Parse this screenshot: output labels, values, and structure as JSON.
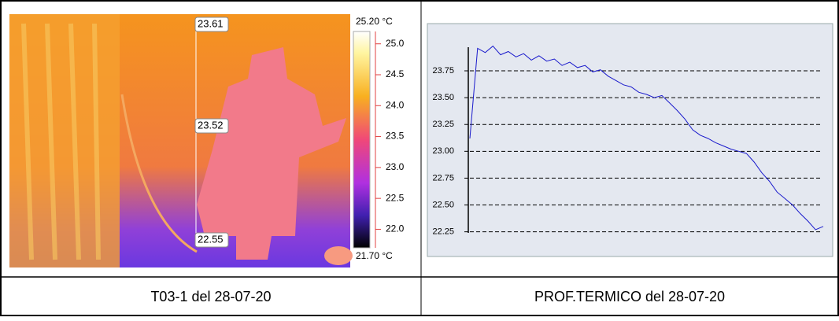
{
  "thermal_image": {
    "caption": "T03-1 del 28-07-20",
    "spot_labels": [
      "23.61",
      "23.52",
      "22.55"
    ],
    "colorbar": {
      "max_label": "25.20 °C",
      "min_label": "21.70 °C",
      "lim": [
        21.7,
        25.2
      ],
      "ticks": [
        {
          "value": 25.0,
          "label": "25.0"
        },
        {
          "value": 24.5,
          "label": "24.5"
        },
        {
          "value": 24.0,
          "label": "24.0"
        },
        {
          "value": 23.5,
          "label": "23.5"
        },
        {
          "value": 23.0,
          "label": "23.0"
        },
        {
          "value": 22.5,
          "label": "22.5"
        },
        {
          "value": 22.0,
          "label": "22.0"
        }
      ]
    }
  },
  "chart_data": {
    "type": "line",
    "caption": "PROF.TERMICO del 28-07-20",
    "color": "#1a1acc",
    "grid": true,
    "ylim": [
      22.02,
      24.19
    ],
    "yticks": [
      {
        "value": 22.25,
        "label": "22.25"
      },
      {
        "value": 22.5,
        "label": "22.50"
      },
      {
        "value": 22.75,
        "label": "22.75"
      },
      {
        "value": 23.0,
        "label": "23.00"
      },
      {
        "value": 23.25,
        "label": "23.25"
      },
      {
        "value": 23.5,
        "label": "23.50"
      },
      {
        "value": 23.75,
        "label": "23.75"
      }
    ],
    "values": [
      23.12,
      23.96,
      23.92,
      23.98,
      23.9,
      23.93,
      23.88,
      23.91,
      23.85,
      23.89,
      23.84,
      23.86,
      23.8,
      23.83,
      23.78,
      23.8,
      23.74,
      23.76,
      23.7,
      23.66,
      23.62,
      23.6,
      23.55,
      23.53,
      23.5,
      23.52,
      23.45,
      23.38,
      23.3,
      23.2,
      23.15,
      23.12,
      23.08,
      23.05,
      23.02,
      23.0,
      22.98,
      22.9,
      22.8,
      22.72,
      22.62,
      22.56,
      22.5,
      22.42,
      22.35,
      22.27,
      22.3
    ]
  }
}
